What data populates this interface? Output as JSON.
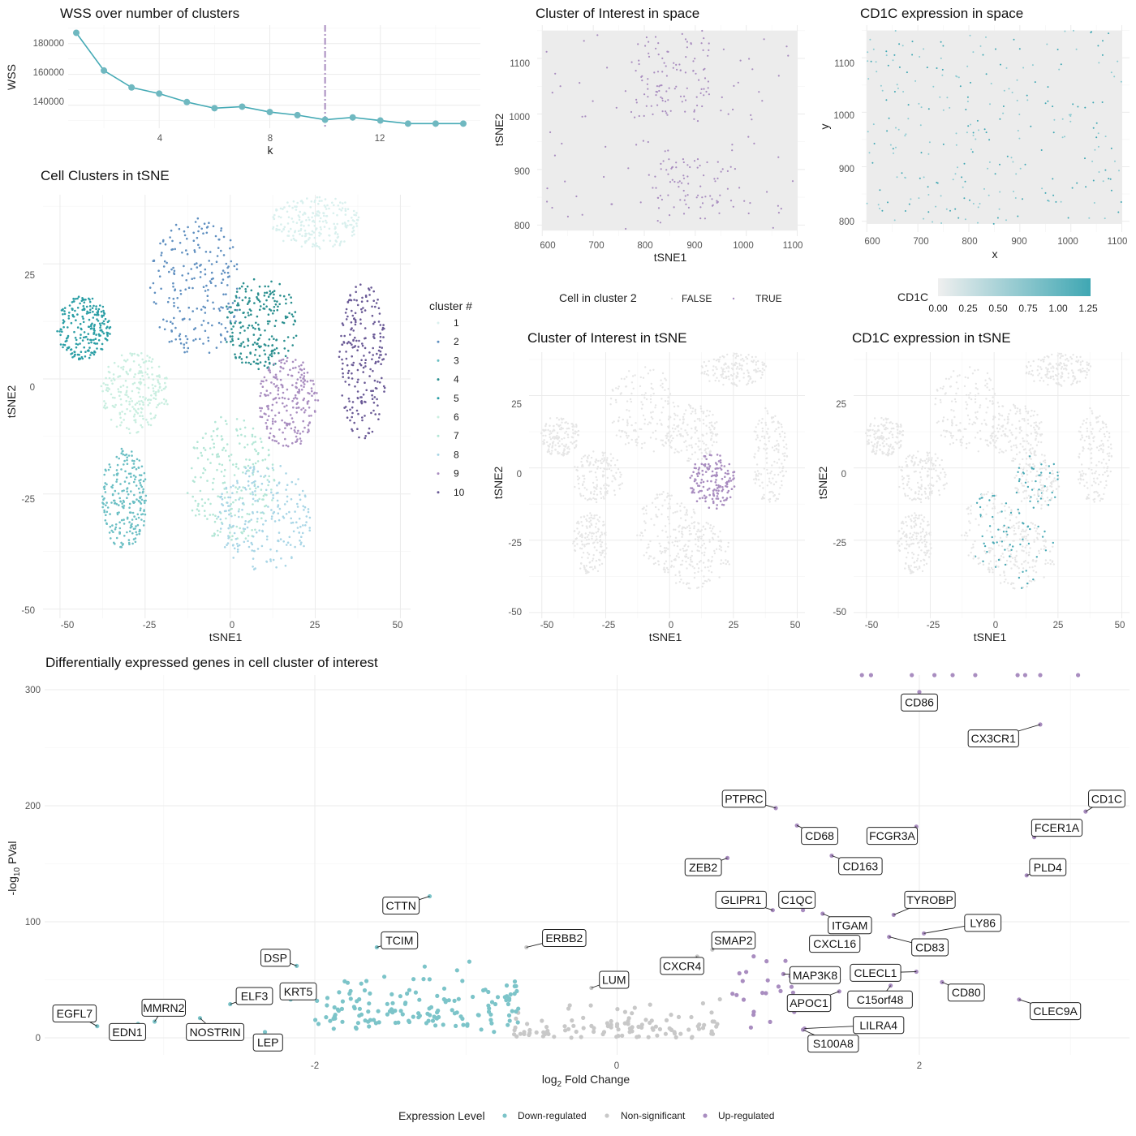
{
  "colors": {
    "cluster": [
      "#d9f0ee",
      "#5f8fc0",
      "#6bbfc4",
      "#2a8f8f",
      "#2a9ea5",
      "#c9eee0",
      "#b3e6d6",
      "#a9d6e6",
      "#a98dc0",
      "#6a5a96"
    ],
    "accent_teal": "#45aab5",
    "up": "#a98dc0",
    "down": "#7cc4c9",
    "ns": "#c8c8c8",
    "background_points": "#e4e4e4"
  },
  "chart_data": [
    {
      "id": "wss",
      "type": "line",
      "title": "WSS over number of clusters",
      "xlabel": "k",
      "ylabel": "WSS",
      "xlim": [
        1,
        15.5
      ],
      "ylim": [
        125000,
        192000
      ],
      "xticks": [
        "4",
        "8",
        "12"
      ],
      "yticks": [
        "140000",
        "160000",
        "180000"
      ],
      "x": [
        1,
        2,
        3,
        4,
        5,
        6,
        7,
        8,
        9,
        10,
        11,
        12,
        13,
        14,
        15
      ],
      "values": [
        187000,
        162500,
        151500,
        147500,
        142000,
        138000,
        139000,
        135500,
        133500,
        130500,
        132000,
        130000,
        128000,
        128000,
        128000
      ],
      "vline_x": 10
    },
    {
      "id": "clusters_tsne",
      "type": "scatter",
      "title": "Cell Clusters in tSNE",
      "xlabel": "tSNE1",
      "ylabel": "tSNE2",
      "xlim": [
        -55,
        53
      ],
      "ylim": [
        -52,
        40
      ],
      "xticks": [
        "-50",
        "-25",
        "0",
        "25",
        "50"
      ],
      "yticks": [
        "25",
        "0",
        "-25",
        "-50"
      ],
      "legend_title": "cluster #",
      "legend_labels": [
        "1",
        "2",
        "3",
        "4",
        "5",
        "6",
        "7",
        "8",
        "9",
        "10"
      ],
      "legend_position": "right",
      "clusters": [
        {
          "id": 1,
          "cx": 25,
          "cy": 34,
          "rx": 13,
          "ry": 6
        },
        {
          "id": 2,
          "cx": -10,
          "cy": 20,
          "rx": 14,
          "ry": 15
        },
        {
          "id": 3,
          "cx": -31,
          "cy": -26,
          "rx": 7,
          "ry": 11
        },
        {
          "id": 4,
          "cx": 9,
          "cy": 12,
          "rx": 11,
          "ry": 10
        },
        {
          "id": 5,
          "cx": -43,
          "cy": 11,
          "rx": 8,
          "ry": 7
        },
        {
          "id": 6,
          "cx": -28,
          "cy": -3,
          "rx": 10,
          "ry": 9
        },
        {
          "id": 7,
          "cx": 0,
          "cy": -22,
          "rx": 13,
          "ry": 14
        },
        {
          "id": 8,
          "cx": 10,
          "cy": -30,
          "rx": 14,
          "ry": 12
        },
        {
          "id": 9,
          "cx": 17,
          "cy": -5,
          "rx": 9,
          "ry": 10
        },
        {
          "id": 10,
          "cx": 39,
          "cy": 4,
          "rx": 7,
          "ry": 17
        }
      ]
    },
    {
      "id": "interest_space",
      "type": "scatter",
      "title": "Cluster of Interest in space",
      "xlabel": "tSNE1",
      "ylabel": "tSNE2",
      "xlim": [
        590,
        1115
      ],
      "ylim": [
        780,
        1160
      ],
      "xticks": [
        "600",
        "700",
        "800",
        "900",
        "1000",
        "1100"
      ],
      "yticks": [
        "1100",
        "1000",
        "900",
        "800"
      ],
      "legend_title": "Cell in cluster 2",
      "legend_labels": [
        "FALSE",
        "TRUE"
      ],
      "legend_position": "bottom"
    },
    {
      "id": "cd1c_space",
      "type": "scatter",
      "title": "CD1C expression in space",
      "xlabel": "x",
      "ylabel": "y",
      "xlim": [
        590,
        1115
      ],
      "ylim": [
        780,
        1160
      ],
      "xticks": [
        "600",
        "700",
        "800",
        "900",
        "1000",
        "1100"
      ],
      "yticks": [
        "1100",
        "1000",
        "900",
        "800"
      ],
      "legend_title": "CD1C",
      "legend_labels": [
        "0.00",
        "0.25",
        "0.50",
        "0.75",
        "1.00",
        "1.25"
      ],
      "legend_position": "bottom"
    },
    {
      "id": "interest_tsne",
      "type": "scatter",
      "title": "Cluster of Interest in tSNE",
      "xlabel": "tSNE1",
      "ylabel": "tSNE2",
      "xlim": [
        -55,
        53
      ],
      "ylim": [
        -52,
        40
      ],
      "xticks": [
        "-50",
        "-25",
        "0",
        "25",
        "50"
      ],
      "yticks": [
        "25",
        "0",
        "-25",
        "-50"
      ]
    },
    {
      "id": "cd1c_tsne",
      "type": "scatter",
      "title": "CD1C expression in tSNE",
      "xlabel": "tSNE1",
      "ylabel": "tSNE2",
      "xlim": [
        -55,
        53
      ],
      "ylim": [
        -52,
        40
      ],
      "xticks": [
        "-50",
        "-25",
        "0",
        "25",
        "50"
      ],
      "yticks": [
        "25",
        "0",
        "-25",
        "-50"
      ]
    },
    {
      "id": "volcano",
      "type": "scatter",
      "title": "Differentially expressed genes in cell cluster of interest",
      "xlabel": "log2 Fold Change",
      "ylabel": "-log10 PVal",
      "xlim": [
        -3.8,
        3.4
      ],
      "ylim": [
        -10,
        312
      ],
      "xticks": [
        "-2",
        "0",
        "2"
      ],
      "yticks": [
        "0",
        "100",
        "200",
        "300"
      ],
      "legend_title": "Expression Level",
      "legend_labels": [
        "Down-regulated",
        "Non-significant",
        "Up-regulated"
      ],
      "legend_position": "bottom",
      "genes": [
        {
          "name": "CD86",
          "x": 2.0,
          "y": 298,
          "lx": 2.0,
          "ly": 289
        },
        {
          "name": "CX3CR1",
          "x": 2.8,
          "y": 270,
          "lx": 2.49,
          "ly": 258
        },
        {
          "name": "PTPRC",
          "x": 1.05,
          "y": 198,
          "lx": 0.84,
          "ly": 206
        },
        {
          "name": "CD1C",
          "x": 3.1,
          "y": 195,
          "lx": 3.24,
          "ly": 206
        },
        {
          "name": "CD68",
          "x": 1.19,
          "y": 183,
          "lx": 1.34,
          "ly": 174
        },
        {
          "name": "FCGR3A",
          "x": 1.98,
          "y": 182,
          "lx": 1.82,
          "ly": 174
        },
        {
          "name": "FCER1A",
          "x": 2.76,
          "y": 173,
          "lx": 2.91,
          "ly": 181
        },
        {
          "name": "CD163",
          "x": 1.42,
          "y": 157,
          "lx": 1.61,
          "ly": 148
        },
        {
          "name": "ZEB2",
          "x": 0.73,
          "y": 155,
          "lx": 0.57,
          "ly": 147
        },
        {
          "name": "PLD4",
          "x": 2.71,
          "y": 140,
          "lx": 2.85,
          "ly": 147
        },
        {
          "name": "CTTN",
          "x": -1.24,
          "y": 122,
          "lx": -1.43,
          "ly": 114
        },
        {
          "name": "GLIPR1",
          "x": 1.03,
          "y": 110,
          "lx": 0.82,
          "ly": 119
        },
        {
          "name": "C1QC",
          "x": 1.23,
          "y": 110,
          "lx": 1.19,
          "ly": 119
        },
        {
          "name": "TYROBP",
          "x": 1.83,
          "y": 106,
          "lx": 2.07,
          "ly": 119
        },
        {
          "name": "ITGAM",
          "x": 1.36,
          "y": 107,
          "lx": 1.54,
          "ly": 97
        },
        {
          "name": "LY86",
          "x": 2.03,
          "y": 90,
          "lx": 2.42,
          "ly": 99
        },
        {
          "name": "CD83",
          "x": 1.8,
          "y": 87,
          "lx": 2.07,
          "ly": 78
        },
        {
          "name": "CXCL16",
          "x": 1.43,
          "y": 87,
          "lx": 1.44,
          "ly": 81
        },
        {
          "name": "TCIM",
          "x": -1.59,
          "y": 78,
          "lx": -1.44,
          "ly": 84
        },
        {
          "name": "ERBB2",
          "x": -0.6,
          "y": 78,
          "lx": -0.35,
          "ly": 86
        },
        {
          "name": "SMAP2",
          "x": 0.63,
          "y": 76,
          "lx": 0.77,
          "ly": 84
        },
        {
          "name": "DSP",
          "x": -2.12,
          "y": 62,
          "lx": -2.26,
          "ly": 69
        },
        {
          "name": "CXCR4",
          "x": 0.53,
          "y": 70,
          "lx": 0.43,
          "ly": 62
        },
        {
          "name": "CLECL1",
          "x": 1.98,
          "y": 57,
          "lx": 1.71,
          "ly": 56
        },
        {
          "name": "MAP3K8",
          "x": 1.1,
          "y": 55,
          "lx": 1.31,
          "ly": 54
        },
        {
          "name": "LUM",
          "x": -0.17,
          "y": 43,
          "lx": -0.02,
          "ly": 50
        },
        {
          "name": "C15orf48",
          "x": 1.81,
          "y": 45,
          "lx": 1.74,
          "ly": 33
        },
        {
          "name": "CD80",
          "x": 2.15,
          "y": 48,
          "lx": 2.31,
          "ly": 39
        },
        {
          "name": "ELF3",
          "x": -2.56,
          "y": 29,
          "lx": -2.4,
          "ly": 36
        },
        {
          "name": "KRT5",
          "x": -2.16,
          "y": 33,
          "lx": -2.11,
          "ly": 40
        },
        {
          "name": "APOC1",
          "x": 1.47,
          "y": 40,
          "lx": 1.27,
          "ly": 30
        },
        {
          "name": "CLEC9A",
          "x": 2.66,
          "y": 33,
          "lx": 2.9,
          "ly": 23
        },
        {
          "name": "MMRN2",
          "x": -3.06,
          "y": 14,
          "lx": -3.0,
          "ly": 26
        },
        {
          "name": "EGFL7",
          "x": -3.44,
          "y": 10,
          "lx": -3.59,
          "ly": 21
        },
        {
          "name": "EDN1",
          "x": -3.17,
          "y": 12,
          "lx": -3.24,
          "ly": 5
        },
        {
          "name": "NOSTRIN",
          "x": -2.76,
          "y": 17,
          "lx": -2.66,
          "ly": 5
        },
        {
          "name": "LEP",
          "x": -2.33,
          "y": 5,
          "lx": -2.31,
          "ly": -4
        },
        {
          "name": "LILRA4",
          "x": 1.24,
          "y": 8,
          "lx": 1.73,
          "ly": 11
        },
        {
          "name": "S100A8",
          "x": 1.23,
          "y": 7,
          "lx": 1.43,
          "ly": -5
        }
      ]
    }
  ]
}
